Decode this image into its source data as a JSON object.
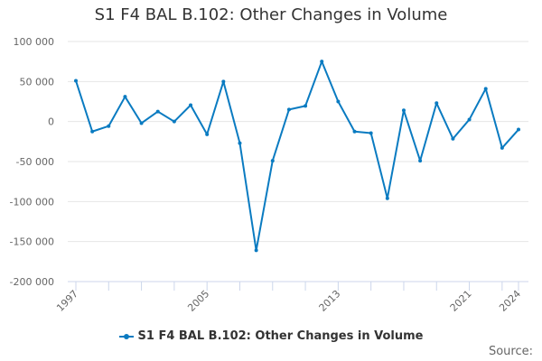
{
  "chart_data": {
    "type": "line",
    "title": "S1 F4 BAL B.102: Other Changes in Volume",
    "xlabel": "",
    "ylabel": "",
    "x": [
      1997,
      1998,
      1999,
      2000,
      2001,
      2002,
      2003,
      2004,
      2005,
      2006,
      2007,
      2008,
      2009,
      2010,
      2011,
      2012,
      2013,
      2014,
      2015,
      2016,
      2017,
      2018,
      2019,
      2020,
      2021,
      2022,
      2023,
      2024
    ],
    "series": [
      {
        "name": "S1 F4 BAL B.102: Other Changes in Volume",
        "values": [
          51000,
          -12500,
          -5700,
          31000,
          -2000,
          12500,
          0,
          20500,
          -16000,
          50000,
          -27000,
          -161000,
          -49000,
          15000,
          19500,
          75000,
          25000,
          -12500,
          -14500,
          -96000,
          14000,
          -49000,
          23000,
          -21500,
          2500,
          41000,
          -33000,
          -10000
        ]
      }
    ],
    "ylim": [
      -200000,
      100000
    ],
    "yticks": [
      100000,
      50000,
      0,
      -50000,
      -100000,
      -150000,
      -200000
    ],
    "ytick_labels": [
      "100 000",
      "50 000",
      "0",
      "-50 000",
      "-100 000",
      "-150 000",
      "-200 000"
    ],
    "xtick_labels": [
      "1997",
      "2005",
      "2013",
      "2021",
      "2024"
    ],
    "grid": true,
    "legend": "bottom",
    "color": "#0a7bc1"
  },
  "source_label": "Source:"
}
